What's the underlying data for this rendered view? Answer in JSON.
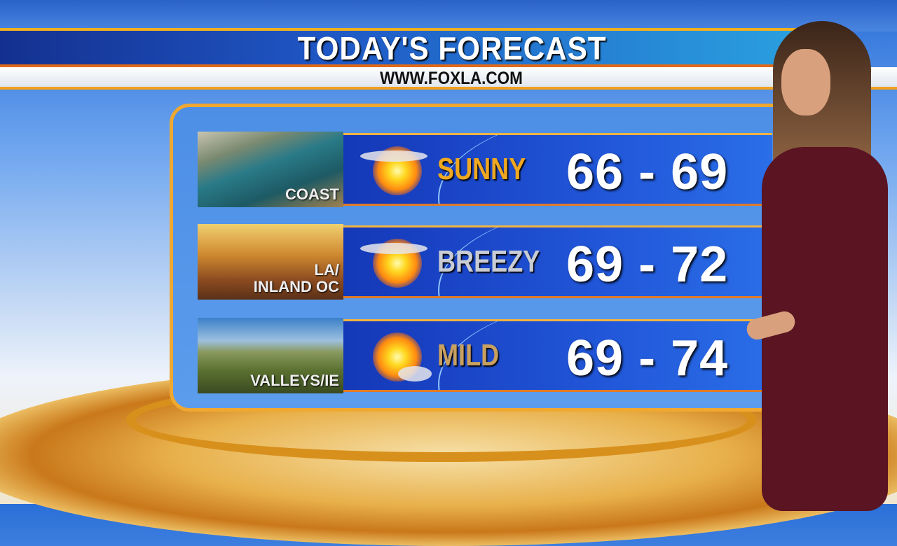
{
  "header": {
    "title": "TODAY'S FORECAST",
    "url": "WWW.FOXLA.COM"
  },
  "forecast": [
    {
      "region": "COAST",
      "condition": "SUNNY",
      "condition_color": "#f0a820",
      "icon": "sun-with-cloud-icon",
      "temp": "66 - 69"
    },
    {
      "region_line1": "LA/",
      "region_line2": "INLAND OC",
      "condition": "BREEZY",
      "condition_color": "#c8ccd4",
      "icon": "sun-with-cloud-icon",
      "temp": "69 - 72"
    },
    {
      "region": "VALLEYS/IE",
      "condition": "MILD",
      "condition_color": "#c8a060",
      "icon": "sun-small-cloud-icon",
      "temp": "69 - 74"
    }
  ]
}
